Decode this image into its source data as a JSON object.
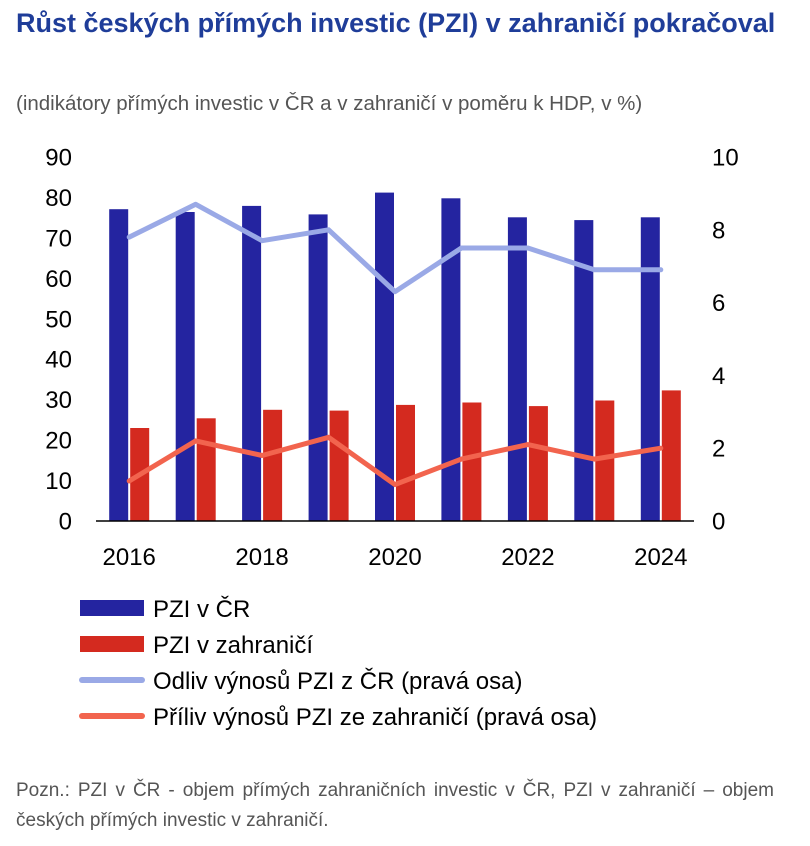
{
  "chart_data": {
    "type": "bar",
    "title": "Růst českých přímých investic (PZI) v zahraničí pokračoval",
    "subtitle": "(indikátory přímých investic v ČR a v zahraničí v poměru k HDP, v %)",
    "x": [
      2016,
      2017,
      2018,
      2019,
      2020,
      2021,
      2022,
      2023,
      2024
    ],
    "x_tick_labels": [
      "2016",
      "2018",
      "2020",
      "2022",
      "2024"
    ],
    "y_left": {
      "range": [
        0,
        90
      ],
      "ticks": [
        0,
        10,
        20,
        30,
        40,
        50,
        60,
        70,
        80,
        90
      ]
    },
    "y_right": {
      "range": [
        0,
        10
      ],
      "ticks": [
        0,
        2,
        4,
        6,
        8,
        10
      ]
    },
    "grid": false,
    "legend_position": "bottom",
    "series": [
      {
        "name": "PZI v ČR",
        "kind": "bar",
        "axis": "left",
        "color": "#2424a0",
        "values": [
          77.1,
          76.4,
          77.9,
          75.8,
          81.2,
          79.8,
          75.1,
          74.4,
          75.1
        ]
      },
      {
        "name": "PZI v zahraničí",
        "kind": "bar",
        "axis": "left",
        "color": "#d42a1f",
        "values": [
          23.0,
          25.4,
          27.5,
          27.3,
          28.7,
          29.3,
          28.4,
          29.8,
          32.3
        ]
      },
      {
        "name": "Odliv výnosů PZI z ČR (pravá osa)",
        "kind": "line",
        "axis": "right",
        "color": "#9aa9e6",
        "values": [
          7.8,
          8.7,
          7.7,
          8.0,
          6.3,
          7.5,
          7.5,
          6.9,
          6.9
        ]
      },
      {
        "name": "Příliv výnosů PZI ze zahraničí (pravá osa)",
        "kind": "line",
        "axis": "right",
        "color": "#f2644e",
        "values": [
          1.1,
          2.2,
          1.8,
          2.3,
          1.0,
          1.7,
          2.1,
          1.7,
          2.0
        ]
      }
    ]
  },
  "note": "Pozn.: PZI v ČR - objem přímých zahraničních investic v ČR, PZI v zahraničí – objem českých přímých investic v zahraničí."
}
